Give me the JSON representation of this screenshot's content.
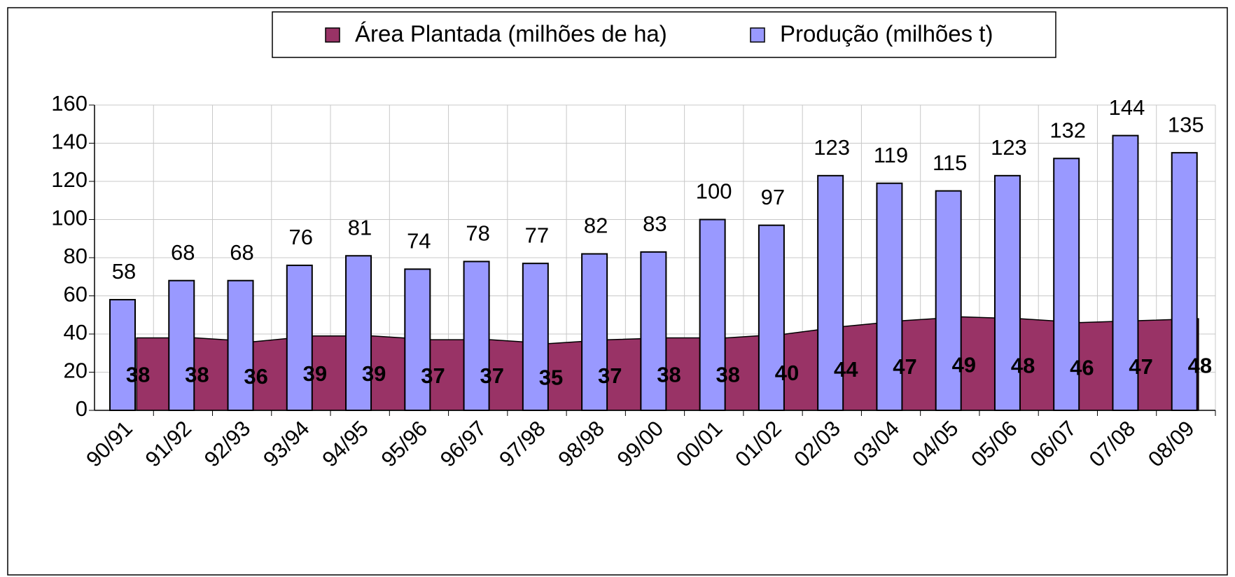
{
  "chart_data": {
    "type": "bar-area",
    "categories": [
      "90/91",
      "91/92",
      "92/93",
      "93/94",
      "94/95",
      "95/96",
      "96/97",
      "97/98",
      "98/98",
      "99/00",
      "00/01",
      "01/02",
      "02/03",
      "03/04",
      "04/05",
      "05/06",
      "06/07",
      "07/08",
      "08/09"
    ],
    "series": [
      {
        "name": "Área Plantada (milhões de ha)",
        "color": "#993366",
        "type": "area",
        "values": [
          38,
          38,
          36,
          39,
          39,
          37,
          37,
          35,
          37,
          38,
          38,
          40,
          44,
          47,
          49,
          48,
          46,
          47,
          48
        ]
      },
      {
        "name": "Produção (milhões t)",
        "color": "#9999ff",
        "type": "bar",
        "values": [
          58,
          68,
          68,
          76,
          81,
          74,
          78,
          77,
          82,
          83,
          100,
          97,
          123,
          119,
          115,
          123,
          132,
          144,
          135
        ]
      }
    ],
    "ylim": [
      0,
      160
    ],
    "yticks": [
      0,
      20,
      40,
      60,
      80,
      100,
      120,
      140,
      160
    ],
    "grid": true,
    "legend": "top"
  }
}
